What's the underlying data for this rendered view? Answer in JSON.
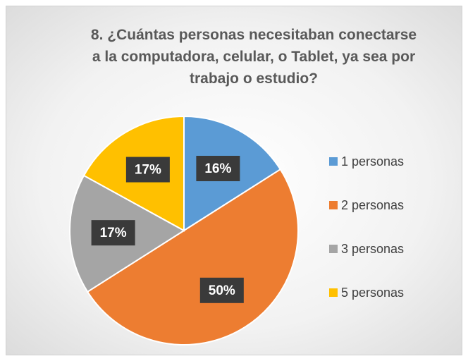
{
  "chart_data": {
    "type": "pie",
    "title": "8. ¿Cuántas personas necesitaban conectarse\na la computadora, celular, o Tablet, ya sea por\ntrabajo o estudio?",
    "categories": [
      "1 personas",
      "2 personas",
      "3 personas",
      "5 personas"
    ],
    "values": [
      16,
      50,
      17,
      17
    ],
    "value_labels": [
      "16%",
      "50%",
      "17%",
      "17%"
    ],
    "colors": [
      "#5b9bd5",
      "#ed7d31",
      "#a5a5a5",
      "#ffc000"
    ],
    "legend": "right"
  }
}
